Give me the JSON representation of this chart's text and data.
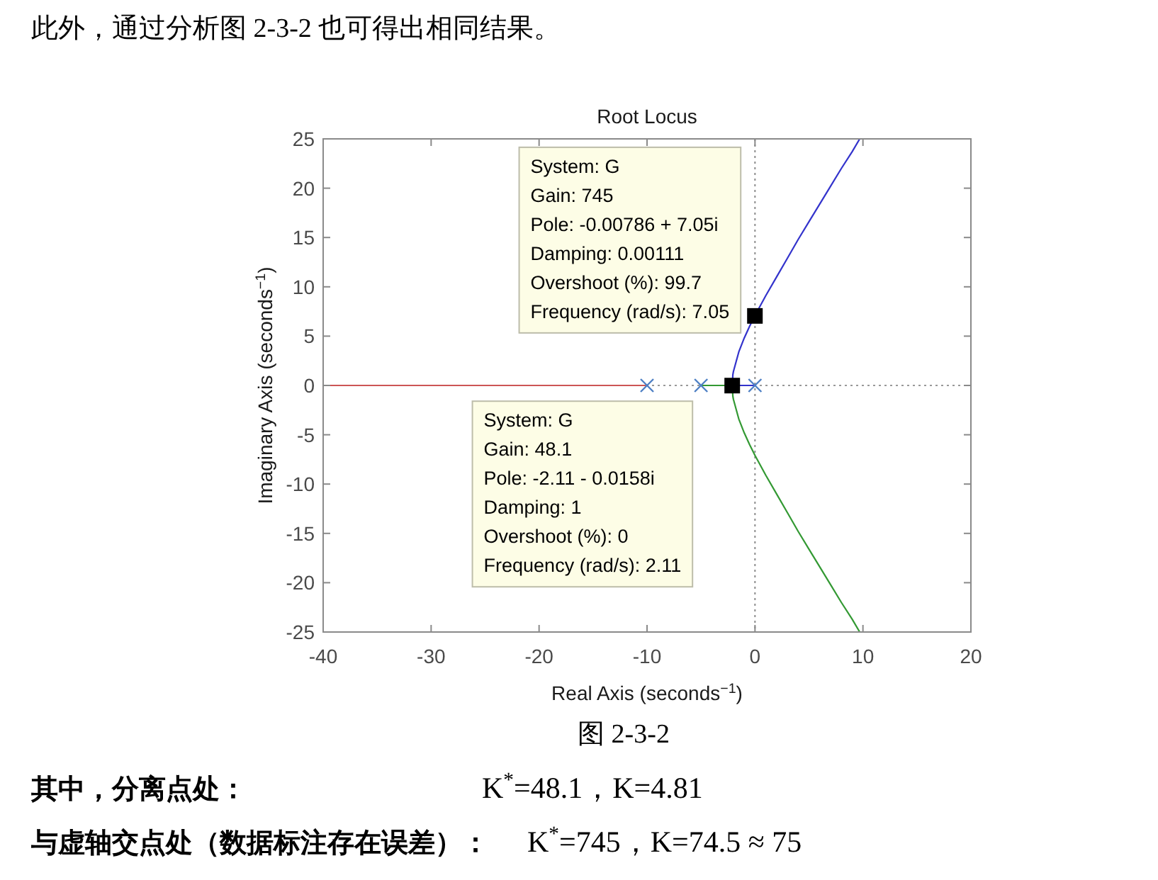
{
  "chart_data": {
    "type": "line",
    "title": "Root Locus",
    "xlabel": "Real Axis (seconds$^{−1}$)",
    "ylabel": "Imaginary Axis (seconds$^{−1}$)",
    "xlim": [
      -40,
      20
    ],
    "xticks": [
      -40,
      -30,
      -20,
      -10,
      0,
      10,
      20
    ],
    "ylim": [
      -25,
      25
    ],
    "yticks": [
      -25,
      -20,
      -15,
      -10,
      -5,
      0,
      5,
      10,
      15,
      20,
      25
    ],
    "ref_lines": [
      {
        "axis": "x",
        "value": 0,
        "color": "#8c8c8c",
        "line_style": "dotted"
      },
      {
        "axis": "y",
        "value": 0,
        "color": "#999999",
        "line_style": "dotted"
      }
    ],
    "series": [
      {
        "color": "#cc5555",
        "x": [
          -10,
          -40
        ],
        "values": [
          0,
          0
        ]
      },
      {
        "color": "#339933",
        "x": [
          -5,
          -4,
          -3,
          -2.1,
          -2.05,
          -2,
          -1.5,
          -1,
          -0.5,
          0,
          1,
          2,
          3,
          4,
          5,
          6,
          7,
          8,
          9,
          9.7
        ],
        "values": [
          0,
          0,
          0,
          0,
          -1.1,
          -1.4,
          -3.4,
          -4.8,
          -6,
          -7.1,
          -9.1,
          -11,
          -12.9,
          -14.8,
          -16.6,
          -18.4,
          -20.2,
          -22,
          -23.7,
          -25
        ]
      },
      {
        "color": "#3333cc",
        "x": [
          0,
          -1,
          -2.1,
          -2.05,
          -2,
          -1.5,
          -1,
          -0.5,
          0,
          1,
          2,
          3,
          4,
          5,
          6,
          7,
          8,
          9,
          9.7
        ],
        "values": [
          0,
          0,
          0,
          1.1,
          1.4,
          3.4,
          4.8,
          6,
          7.1,
          9.1,
          11,
          12.9,
          14.8,
          16.6,
          18.4,
          20.2,
          22,
          23.7,
          25
        ]
      },
      {
        "type": "scatter",
        "marker": "cross",
        "color": "#4d7fc4",
        "x": [
          -10,
          -5,
          0
        ],
        "values": [
          0,
          0,
          0
        ]
      },
      {
        "type": "scatter",
        "marker": "square",
        "color": "#000000",
        "x": [
          -2.11,
          -0.00786
        ],
        "values": [
          -0.0158,
          7.05
        ]
      }
    ],
    "annotations": [
      "此外，通过分析图 2-3-2 也可得出相同结果。",
      "图 2-3-2",
      "其中，分离点处：",
      "K$^{*}$=48.1，K=4.81",
      "与虚轴交点处（数据标注存在误差）：",
      "K$^{*}$=745，K=74.5 ≈ 75",
      {
        "text": "System: G\nGain: 745\nPole: -0.00786 + 7.05i\nDamping: 0.00111\nOvershoot (%): 99.7\nFrequency (rad/s): 7.05",
        "x": -0.00786,
        "y": 7.05
      },
      {
        "text": "System: G\nGain: 48.1\nPole: -2.11 - 0.0158i\nDamping: 1\nOvershoot (%): 0\nFrequency (rad/s): 2.11",
        "x": -2.11,
        "y": -0.0158
      }
    ]
  }
}
